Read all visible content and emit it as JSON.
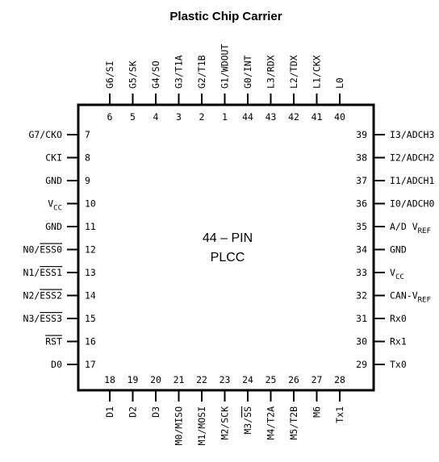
{
  "title": "Plastic Chip Carrier",
  "package": {
    "line1": "44 – PIN",
    "line2": "PLCC"
  },
  "pins": {
    "top": [
      {
        "num": "6",
        "label": "G6/SI"
      },
      {
        "num": "5",
        "label": "G5/SK"
      },
      {
        "num": "4",
        "label": "G4/SO"
      },
      {
        "num": "3",
        "label": "G3/T1A"
      },
      {
        "num": "2",
        "label": "G2/T1B"
      },
      {
        "num": "1",
        "label": "G1/WDOUT"
      },
      {
        "num": "44",
        "label": "G0/INT"
      },
      {
        "num": "43",
        "label": "L3/RDX"
      },
      {
        "num": "42",
        "label": "L2/TDX"
      },
      {
        "num": "41",
        "label": "L1/CKX"
      },
      {
        "num": "40",
        "label": "L0"
      }
    ],
    "left": [
      {
        "num": "7",
        "label": "G7/CKO"
      },
      {
        "num": "8",
        "label": "CKI"
      },
      {
        "num": "9",
        "label": "GND"
      },
      {
        "num": "10",
        "label": "V",
        "sub": "CC"
      },
      {
        "num": "11",
        "label": "GND"
      },
      {
        "num": "12",
        "label": "N0/",
        "over": "ESS0"
      },
      {
        "num": "13",
        "label": "N1/",
        "over": "ESS1"
      },
      {
        "num": "14",
        "label": "N2/",
        "over": "ESS2"
      },
      {
        "num": "15",
        "label": "N3/",
        "over": "ESS3"
      },
      {
        "num": "16",
        "label": "",
        "over": "RST"
      },
      {
        "num": "17",
        "label": "D0"
      }
    ],
    "right": [
      {
        "num": "39",
        "label": "I3/ADCH3"
      },
      {
        "num": "38",
        "label": "I2/ADCH2"
      },
      {
        "num": "37",
        "label": "I1/ADCH1"
      },
      {
        "num": "36",
        "label": "I0/ADCH0"
      },
      {
        "num": "35",
        "label": "A/D V",
        "sub": "REF"
      },
      {
        "num": "34",
        "label": "GND"
      },
      {
        "num": "33",
        "label": "V",
        "sub": "CC"
      },
      {
        "num": "32",
        "label": "CAN-V",
        "sub": "REF"
      },
      {
        "num": "31",
        "label": "Rx0"
      },
      {
        "num": "30",
        "label": "Rx1"
      },
      {
        "num": "29",
        "label": "Tx0"
      }
    ],
    "bottom": [
      {
        "num": "18",
        "label": "D1"
      },
      {
        "num": "19",
        "label": "D2"
      },
      {
        "num": "20",
        "label": "D3"
      },
      {
        "num": "21",
        "label": "M0/MISO"
      },
      {
        "num": "22",
        "label": "M1/MOSI"
      },
      {
        "num": "23",
        "label": "M2/SCK"
      },
      {
        "num": "24",
        "label": "M3/",
        "over": "SS"
      },
      {
        "num": "25",
        "label": "M4/T2A"
      },
      {
        "num": "26",
        "label": "M5/T2B"
      },
      {
        "num": "27",
        "label": "M6"
      },
      {
        "num": "28",
        "label": "Tx1"
      }
    ]
  }
}
